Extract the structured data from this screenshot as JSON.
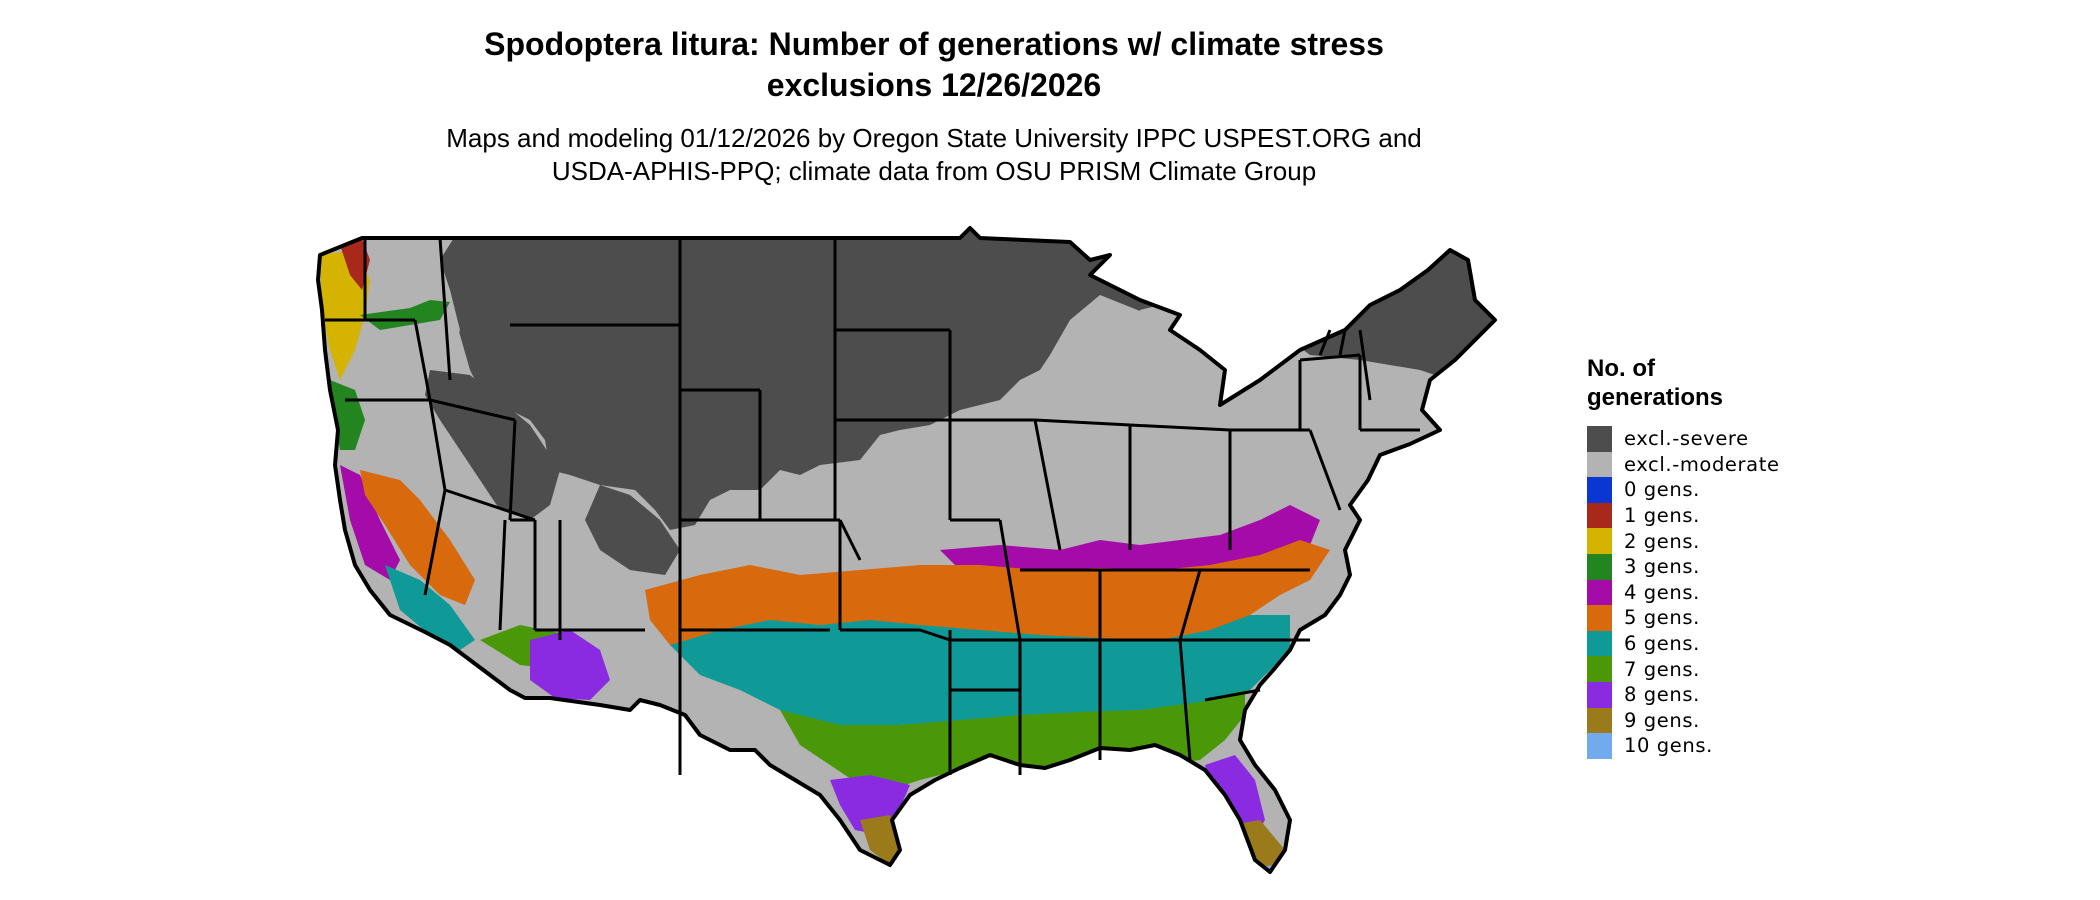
{
  "header": {
    "title_line1": "Spodoptera litura: Number of generations w/ climate stress",
    "title_line2": "exclusions 12/26/2026",
    "subtitle_line1": "Maps and modeling 01/12/2026 by Oregon State University IPPC USPEST.ORG and",
    "subtitle_line2": "USDA-APHIS-PPQ; climate data from OSU PRISM Climate Group"
  },
  "legend": {
    "title_line1": "No. of",
    "title_line2": "generations",
    "items": [
      {
        "label": "excl.-severe",
        "color": "#4d4d4d"
      },
      {
        "label": "excl.-moderate",
        "color": "#b3b3b3"
      },
      {
        "label": "0 gens.",
        "color": "#0a36d4"
      },
      {
        "label": "1 gens.",
        "color": "#a8281a"
      },
      {
        "label": "2 gens.",
        "color": "#d4b400"
      },
      {
        "label": "3 gens.",
        "color": "#238520"
      },
      {
        "label": "4 gens.",
        "color": "#a40ba8"
      },
      {
        "label": "5 gens.",
        "color": "#d8690c"
      },
      {
        "label": "6 gens.",
        "color": "#0f9a98"
      },
      {
        "label": "7 gens.",
        "color": "#4a9808"
      },
      {
        "label": "8 gens.",
        "color": "#8a2be2"
      },
      {
        "label": "9 gens.",
        "color": "#9a7a1a"
      },
      {
        "label": "10 gens.",
        "color": "#72aaee"
      }
    ]
  }
}
